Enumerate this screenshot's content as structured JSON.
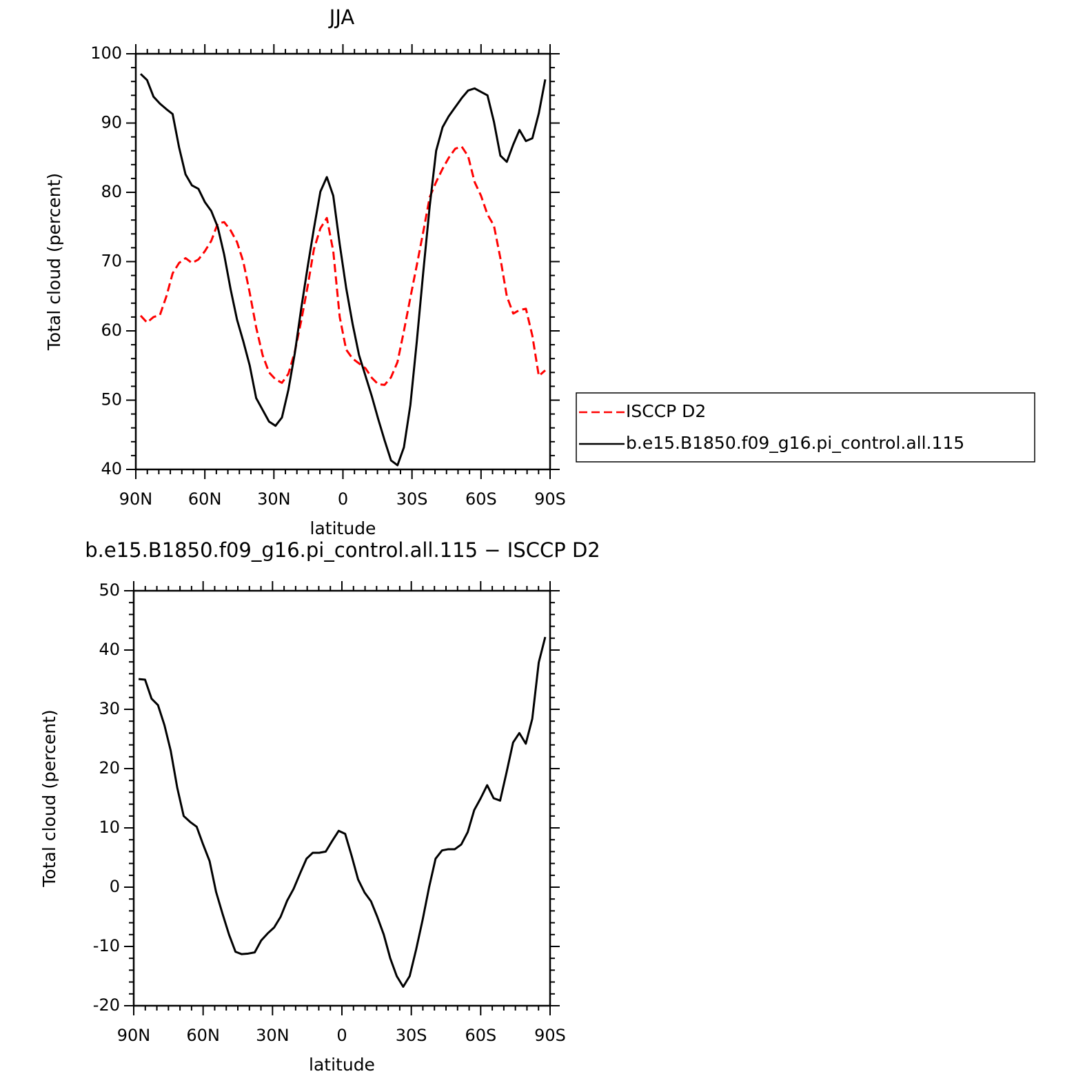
{
  "chart_data": [
    {
      "type": "line",
      "title": "JJA",
      "xlabel": "latitude",
      "ylabel": "Total cloud (percent)",
      "x": [
        87.9,
        85.1,
        82.3,
        79.5,
        76.7,
        74.0,
        71.2,
        68.4,
        65.6,
        62.8,
        60.0,
        57.2,
        54.4,
        51.6,
        48.8,
        46.0,
        43.3,
        40.5,
        37.7,
        34.9,
        32.1,
        29.3,
        26.5,
        23.7,
        20.9,
        18.1,
        15.3,
        12.6,
        9.8,
        7.0,
        4.2,
        1.4,
        -1.4,
        -4.2,
        -7.0,
        -9.8,
        -12.6,
        -15.3,
        -18.1,
        -20.9,
        -23.7,
        -26.5,
        -29.3,
        -32.1,
        -34.9,
        -37.7,
        -40.5,
        -43.3,
        -46.0,
        -48.8,
        -51.6,
        -54.4,
        -57.2,
        -60.0,
        -62.8,
        -65.6,
        -68.4,
        -71.2,
        -74.0,
        -76.7,
        -79.5,
        -82.3,
        -85.1,
        -87.9
      ],
      "series": [
        {
          "name": "ISCCP D2",
          "color": "#ff0000",
          "style": "dashed",
          "values": [
            62.2,
            61.2,
            62,
            62.3,
            65,
            68.3,
            69.8,
            70.5,
            69.8,
            70.3,
            71.5,
            73,
            75.5,
            75.7,
            74.5,
            72.8,
            70,
            65.5,
            60.5,
            56.5,
            54,
            53,
            52.5,
            53.8,
            57,
            61.5,
            66.5,
            71.8,
            74.8,
            76.3,
            71.5,
            62,
            57.3,
            56,
            55.3,
            54.6,
            53.2,
            52.3,
            52.2,
            53.3,
            55.5,
            60,
            64.8,
            69.5,
            74.3,
            79.3,
            81.5,
            83.4,
            85,
            86.3,
            86.6,
            85.2,
            81.5,
            79.5,
            76.8,
            75.2,
            70.5,
            65,
            62.5,
            63,
            63.2,
            59.3,
            53.5,
            54.3
          ]
        },
        {
          "name": "b.e15.B1850.f09_g16.pi_control.all.115",
          "color": "#000000",
          "style": "solid",
          "values": [
            97.1,
            96.2,
            93.8,
            92.8,
            92,
            91.3,
            86.5,
            82.6,
            81,
            80.5,
            78.6,
            77.3,
            75,
            71,
            66,
            61.6,
            58.5,
            55,
            50.3,
            48.6,
            46.9,
            46.3,
            47.5,
            51.5,
            56.8,
            63.3,
            69.3,
            74.8,
            80.1,
            82.2,
            79.5,
            72.5,
            66.2,
            61,
            56.5,
            53.5,
            50.5,
            47.3,
            44.2,
            41.3,
            40.6,
            43.2,
            49.3,
            58.5,
            68.5,
            78,
            86,
            89.4,
            91,
            92.3,
            93.6,
            94.7,
            95,
            94.5,
            94,
            90.2,
            85.3,
            84.4,
            86.9,
            89,
            87.4,
            87.8,
            91.4,
            96.3
          ]
        }
      ],
      "xlim": [
        90,
        -90
      ],
      "xticks": [
        {
          "value": 90,
          "label": "90N"
        },
        {
          "value": 60,
          "label": "60N"
        },
        {
          "value": 30,
          "label": "30N"
        },
        0,
        {
          "value": -30,
          "label": "30S"
        },
        {
          "value": -60,
          "label": "60S"
        },
        {
          "value": -90,
          "label": "90S"
        }
      ],
      "ylim": [
        40,
        100
      ],
      "yticks": [
        40,
        50,
        60,
        70,
        80,
        90,
        100
      ],
      "legend": "right"
    },
    {
      "type": "line",
      "title": "b.e15.B1850.f09_g16.pi_control.all.115 − ISCCP D2",
      "xlabel": "latitude",
      "ylabel": "Total cloud (percent)",
      "x": [
        87.9,
        85.1,
        82.3,
        79.5,
        76.7,
        74.0,
        71.2,
        68.4,
        65.6,
        62.8,
        60.0,
        57.2,
        54.4,
        51.6,
        48.8,
        46.0,
        43.3,
        40.5,
        37.7,
        34.9,
        32.1,
        29.3,
        26.5,
        23.7,
        20.9,
        18.1,
        15.3,
        12.6,
        9.8,
        7.0,
        4.2,
        1.4,
        -1.4,
        -4.2,
        -7.0,
        -9.8,
        -12.6,
        -15.3,
        -18.1,
        -20.9,
        -23.7,
        -26.5,
        -29.3,
        -32.1,
        -34.9,
        -37.7,
        -40.5,
        -43.3,
        -46.0,
        -48.8,
        -51.6,
        -54.4,
        -57.2,
        -60.0,
        -62.8,
        -65.6,
        -68.4,
        -71.2,
        -74.0,
        -76.7,
        -79.5,
        -82.3,
        -85.1,
        -87.9
      ],
      "series": [
        {
          "color": "#000000",
          "style": "solid",
          "values": [
            35.1,
            35,
            31.8,
            30.7,
            27.3,
            23,
            16.8,
            12,
            11,
            10.2,
            7.2,
            4.4,
            -0.8,
            -4.5,
            -8,
            -10.9,
            -11.3,
            -11.2,
            -11,
            -9,
            -7.8,
            -6.8,
            -5,
            -2.3,
            -0.3,
            2.3,
            4.8,
            5.8,
            5.8,
            6,
            7.8,
            9.5,
            9,
            5.3,
            1.3,
            -0.9,
            -2.4,
            -5,
            -8,
            -12,
            -15,
            -16.8,
            -15,
            -10.5,
            -5.5,
            0,
            4.8,
            6.2,
            6.4,
            6.4,
            7.2,
            9.3,
            13,
            15,
            17.2,
            15,
            14.6,
            19.4,
            24.4,
            26,
            24.2,
            28.4,
            37.9,
            42.2
          ]
        }
      ],
      "xlim": [
        90,
        -90
      ],
      "xticks": [
        {
          "value": 90,
          "label": "90N"
        },
        {
          "value": 60,
          "label": "60N"
        },
        {
          "value": 30,
          "label": "30N"
        },
        0,
        {
          "value": -30,
          "label": "30S"
        },
        {
          "value": -60,
          "label": "60S"
        },
        {
          "value": -90,
          "label": "90S"
        }
      ],
      "ylim": [
        -20,
        50
      ],
      "yticks": [
        -20,
        -10,
        0,
        10,
        20,
        30,
        40,
        50
      ]
    }
  ]
}
